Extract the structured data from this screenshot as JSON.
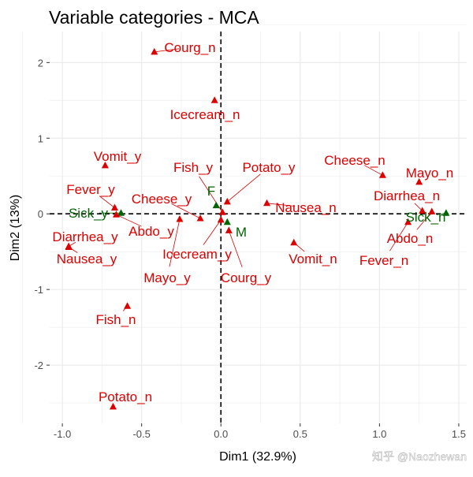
{
  "chart_data": {
    "type": "scatter",
    "title": "Variable categories - MCA",
    "xlabel": "Dim1 (32.9%)",
    "ylabel": "Dim2 (13%)",
    "xlim": [
      -1.08,
      1.55
    ],
    "ylim": [
      -2.77,
      2.41
    ],
    "x_ticks": [
      -1.0,
      -0.5,
      0.0,
      0.5,
      1.0,
      1.5
    ],
    "x_tick_labels": [
      "-1.0",
      "-0.5",
      "0.0",
      "0.5",
      "1.0",
      "1.5"
    ],
    "y_ticks": [
      -2,
      -1,
      0,
      1,
      2
    ],
    "y_tick_labels": [
      "-2",
      "-1",
      "0",
      "1",
      "2"
    ],
    "grid": true,
    "reference_lines": {
      "x": 0,
      "y": 0,
      "style": "dashed"
    },
    "colors": {
      "active": "#dd0000",
      "supplementary": "#006400",
      "grid": "#ebebeb"
    },
    "points": [
      {
        "label": "Courg_n",
        "x": -0.42,
        "y": 2.14,
        "group": "active"
      },
      {
        "label": "Icecream_n",
        "x": -0.04,
        "y": 1.5,
        "group": "active"
      },
      {
        "label": "Vomit_y",
        "x": -0.73,
        "y": 0.64,
        "group": "active"
      },
      {
        "label": "Cheese_n",
        "x": 1.02,
        "y": 0.51,
        "group": "active"
      },
      {
        "label": "Mayo_n",
        "x": 1.25,
        "y": 0.42,
        "group": "active"
      },
      {
        "label": "Potato_y",
        "x": 0.04,
        "y": 0.16,
        "group": "active"
      },
      {
        "label": "Fish_y",
        "x": 0.01,
        "y": 0.02,
        "group": "active"
      },
      {
        "label": "F",
        "x": -0.03,
        "y": 0.11,
        "group": "supplementary"
      },
      {
        "label": "Cheese_y",
        "x": -0.13,
        "y": -0.06,
        "group": "active"
      },
      {
        "label": "Nausea_n",
        "x": 0.29,
        "y": 0.14,
        "group": "active"
      },
      {
        "label": "Fever_y",
        "x": -0.67,
        "y": 0.08,
        "group": "active"
      },
      {
        "label": "Diarrhea_n",
        "x": 1.27,
        "y": 0.04,
        "group": "active"
      },
      {
        "label": "Sick_n",
        "x": 1.42,
        "y": 0.01,
        "group": "supplementary"
      },
      {
        "label": "Abdo_n",
        "x": 1.33,
        "y": 0.03,
        "group": "active"
      },
      {
        "label": "Fever_n",
        "x": 1.18,
        "y": -0.11,
        "group": "active"
      },
      {
        "label": "Sick_y",
        "x": -0.63,
        "y": 0.01,
        "group": "supplementary"
      },
      {
        "label": "Abdo_y",
        "x": -0.66,
        "y": -0.01,
        "group": "active"
      },
      {
        "label": "Diarrhea_y",
        "x": -0.96,
        "y": -0.43,
        "group": "active"
      },
      {
        "label": "Nausea_y",
        "x": -0.96,
        "y": -0.44,
        "group": "active"
      },
      {
        "label": "Mayo_y",
        "x": -0.26,
        "y": -0.07,
        "group": "active"
      },
      {
        "label": "Icecream_y",
        "x": 0.0,
        "y": -0.08,
        "group": "active"
      },
      {
        "label": "M",
        "x": 0.04,
        "y": -0.11,
        "group": "supplementary"
      },
      {
        "label": "Courg_y",
        "x": 0.05,
        "y": -0.22,
        "group": "active"
      },
      {
        "label": "Vomit_n",
        "x": 0.46,
        "y": -0.38,
        "group": "active"
      },
      {
        "label": "Fish_n",
        "x": -0.59,
        "y": -1.22,
        "group": "active"
      },
      {
        "label": "Potato_n",
        "x": -0.68,
        "y": -2.55,
        "group": "active"
      }
    ]
  },
  "watermark": "知乎 @Naozhewan"
}
